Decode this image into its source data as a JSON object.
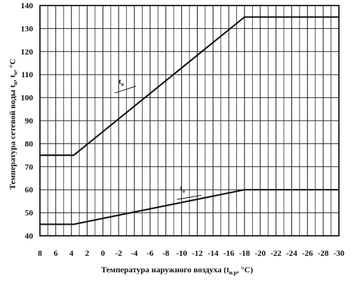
{
  "chart_data": {
    "type": "line",
    "title": "",
    "xlabel": "Температура наружного воздуха (t",
    "xlabel_sub": "н.р",
    "xlabel_tail": ", °C)",
    "ylabel": "Температура сетевой воды t",
    "ylabel_sub1": "п",
    "ylabel_mid": ",  t",
    "ylabel_sub2": "о",
    "ylabel_tail": ", °C",
    "xlim": [
      8,
      -30
    ],
    "ylim": [
      40,
      140
    ],
    "x_ticks": [
      8,
      6,
      4,
      2,
      0,
      -2,
      -4,
      -6,
      -8,
      -10,
      -12,
      -14,
      -16,
      -18,
      -20,
      -22,
      -24,
      -26,
      -28,
      -30
    ],
    "y_ticks": [
      40,
      50,
      60,
      70,
      80,
      90,
      100,
      110,
      120,
      130,
      140
    ],
    "x_grid_step": 1,
    "grid": true,
    "series": [
      {
        "name": "t",
        "sub": "п",
        "points": [
          [
            8,
            75
          ],
          [
            3.7,
            75
          ],
          [
            -18,
            135
          ],
          [
            -30,
            135
          ]
        ]
      },
      {
        "name": "t",
        "sub": "о",
        "points": [
          [
            8,
            45
          ],
          [
            3.7,
            45
          ],
          [
            -18,
            60
          ],
          [
            -30,
            60
          ]
        ]
      }
    ]
  }
}
